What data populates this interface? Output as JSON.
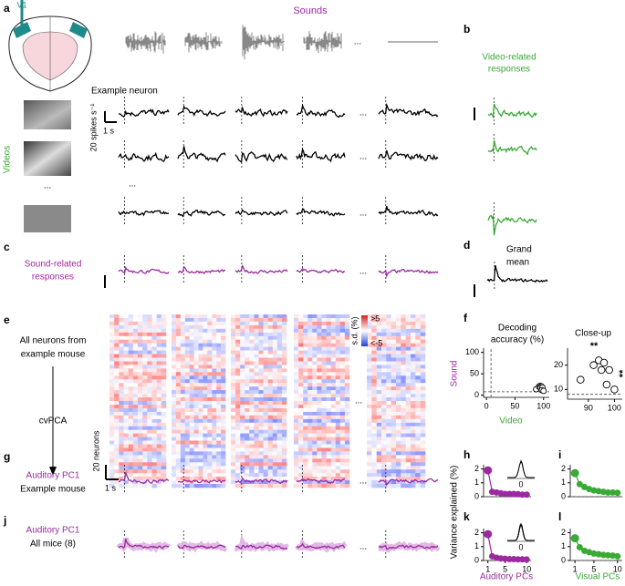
{
  "panels": [
    "a",
    "b",
    "c",
    "d",
    "e",
    "f",
    "g",
    "h",
    "i",
    "j",
    "k",
    "l"
  ],
  "area": "V1",
  "sounds": "Sounds",
  "ellipsis": "...",
  "video_responses": [
    "Video-related",
    "responses"
  ],
  "example_neuron": "Example neuron",
  "rate_scale": "20 spikes s⁻¹",
  "time_scale": "1 s",
  "videos": "Videos",
  "sound_responses": [
    "Sound-related",
    "responses"
  ],
  "grand_mean": [
    "Grand",
    "mean"
  ],
  "all_neurons": [
    "All neurons from",
    "example mouse"
  ],
  "cvpca": "cvPCA",
  "neuron_scale": "20 neurons",
  "colorbar": {
    "label": "s.d. (%)",
    "max": ">5",
    "min": "<-5"
  },
  "pc1_example": [
    "Auditory PC1",
    "Example mouse"
  ],
  "pc1_all": [
    "Auditory PC1",
    "All mice (8)"
  ],
  "decoding": {
    "title": [
      "Decoding",
      "accuracy (%)"
    ],
    "ylabel": "Sound",
    "xlabel": "Video",
    "x": [
      87,
      92,
      94,
      96,
      95,
      98,
      97,
      100
    ],
    "y": [
      14,
      20,
      22,
      21,
      18,
      18,
      12,
      10
    ],
    "xlim": [
      -5,
      110
    ],
    "ylim": [
      -5,
      110
    ],
    "xticks": [
      0,
      50,
      100
    ],
    "yticks": [
      0,
      50,
      100
    ],
    "chance": 8
  },
  "closeup": {
    "title": "Close-up",
    "xlim": [
      82,
      103
    ],
    "ylim": [
      6,
      27
    ],
    "xticks": [
      90,
      100
    ],
    "yticks": [
      10,
      20
    ],
    "significance": [
      "**",
      "**"
    ]
  },
  "variance": {
    "ylabel": "Variance explained (%)",
    "inset_tick": "0",
    "xlabels": [
      "Auditory PCs",
      "Visual PCs"
    ],
    "plots": [
      {
        "color": "#9b2aa0",
        "x": [
          1,
          2,
          3,
          4,
          5,
          6,
          7,
          8,
          9,
          10
        ],
        "values": [
          1.9,
          0.35,
          0.3,
          0.25,
          0.2,
          0.2,
          0.2,
          0.18,
          0.15,
          0.15
        ],
        "xlim": [
          0,
          11
        ],
        "ylim": [
          0,
          2.3
        ],
        "yticks": [
          0,
          1,
          2
        ]
      },
      {
        "color": "#3aa935",
        "x": [
          1,
          2,
          3,
          4,
          5,
          6,
          7,
          8,
          9,
          10
        ],
        "values": [
          1.7,
          0.9,
          0.7,
          0.55,
          0.45,
          0.4,
          0.35,
          0.3,
          0.3,
          0.28
        ],
        "xlim": [
          0,
          11
        ],
        "ylim": [
          0,
          2.3
        ],
        "yticks": [
          0,
          1,
          2
        ]
      },
      {
        "color": "#9b2aa0",
        "x": [
          1,
          2,
          3,
          4,
          5,
          6,
          7,
          8,
          9,
          10
        ],
        "values": [
          1.9,
          0.3,
          0.2,
          0.15,
          0.12,
          0.1,
          0.1,
          0.08,
          0.08,
          0.07
        ],
        "xlim": [
          0,
          11
        ],
        "ylim": [
          0,
          2.3
        ],
        "yticks": [
          0,
          1,
          2
        ],
        "xticks": [
          1,
          5,
          10
        ]
      },
      {
        "color": "#3aa935",
        "x": [
          1,
          2,
          3,
          4,
          5,
          6,
          7,
          8,
          9,
          10
        ],
        "values": [
          1.6,
          0.95,
          0.7,
          0.6,
          0.5,
          0.45,
          0.4,
          0.38,
          0.35,
          0.3
        ],
        "xlim": [
          0,
          11
        ],
        "ylim": [
          0,
          2.3
        ],
        "yticks": [
          0,
          1,
          2
        ],
        "xticks": [
          1,
          5,
          10
        ]
      }
    ]
  }
}
